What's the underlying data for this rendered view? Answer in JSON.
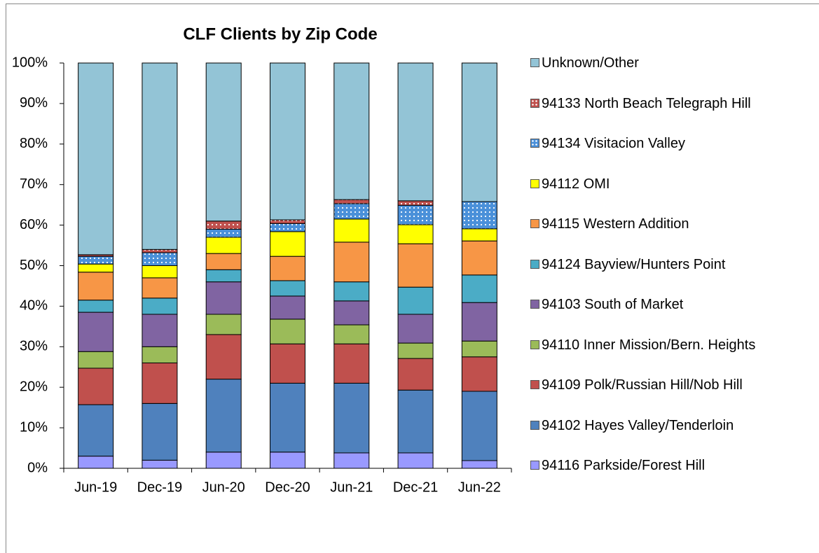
{
  "chart_data": {
    "type": "stacked_bar",
    "title": "CLF Clients by Zip Code",
    "categories": [
      "Jun-19",
      "Dec-19",
      "Jun-20",
      "Dec-20",
      "Jun-21",
      "Dec-21",
      "Jun-22"
    ],
    "ylim": [
      0,
      100
    ],
    "yticks": [
      {
        "value": 0,
        "label": "0%"
      },
      {
        "value": 10,
        "label": "10%"
      },
      {
        "value": 20,
        "label": "20%"
      },
      {
        "value": 30,
        "label": "30%"
      },
      {
        "value": 40,
        "label": "40%"
      },
      {
        "value": 50,
        "label": "50%"
      },
      {
        "value": 60,
        "label": "60%"
      },
      {
        "value": 70,
        "label": "70%"
      },
      {
        "value": 80,
        "label": "80%"
      },
      {
        "value": 90,
        "label": "90%"
      },
      {
        "value": 100,
        "label": "100%"
      }
    ],
    "series": [
      {
        "name": "94116 Parkside/Forest Hill",
        "color": "#9999ff",
        "values": [
          3,
          2,
          4,
          4,
          3.8,
          3.8,
          1.9
        ]
      },
      {
        "name": "94102 Hayes Valley/Tenderloin",
        "color": "#4f81bd",
        "values": [
          12.7,
          14,
          18,
          17,
          17.2,
          15.5,
          17.1
        ]
      },
      {
        "name": "94109 Polk/Russian Hill/Nob Hill",
        "color": "#c0504d",
        "values": [
          9,
          10,
          11,
          9.7,
          9.7,
          7.8,
          8.5
        ]
      },
      {
        "name": "94110 Inner Mission/Bern. Heights",
        "color": "#9bbb59",
        "values": [
          4.1,
          4,
          5,
          6.1,
          4.7,
          3.8,
          3.9
        ]
      },
      {
        "name": "94103 South of Market",
        "color": "#8064a2",
        "values": [
          9.7,
          8,
          8,
          5.7,
          5.9,
          7.1,
          9.5
        ]
      },
      {
        "name": "94124 Bayview/Hunters Point",
        "color": "#4bacc6",
        "values": [
          3,
          4,
          3,
          3.8,
          4.7,
          6.7,
          6.8
        ]
      },
      {
        "name": "94115 Western Addition",
        "color": "#f79646",
        "values": [
          6.9,
          5,
          4,
          6,
          9.8,
          10.7,
          8.4
        ]
      },
      {
        "name": "94112 OMI",
        "color": "#ffff00",
        "values": [
          2,
          3,
          4,
          6.1,
          5.7,
          4.7,
          3
        ]
      },
      {
        "name": "94134 Visitacion Valley",
        "color": "#4a90d9",
        "pattern": "dots",
        "values": [
          1.9,
          3.2,
          2,
          2,
          3.8,
          4.8,
          6.7
        ]
      },
      {
        "name": "94133 North Beach Telegraph Hill",
        "color": "#c0504d",
        "pattern": "dots",
        "values": [
          0.4,
          0.8,
          2,
          0.9,
          1,
          1.1,
          0
        ]
      },
      {
        "name": "Unknown/Other",
        "color": "#93c4d6",
        "values": [
          47.3,
          46,
          39,
          38.7,
          33.7,
          34,
          34.2
        ]
      }
    ]
  }
}
